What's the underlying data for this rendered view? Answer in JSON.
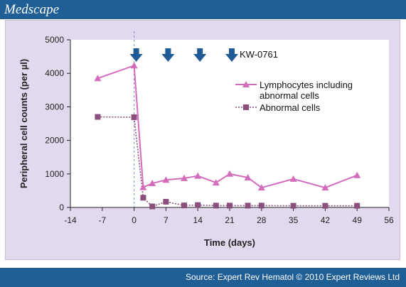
{
  "header": {
    "logo_text": "Medscape"
  },
  "footer": {
    "source": "Source: Expert Rev Hematol © 2010 Expert Reviews Ltd"
  },
  "colors": {
    "header_bg": "#1f5f95",
    "panel_bg": "#e3d9ee",
    "plot_bg": "#ffffff",
    "lymph": "#d46cbc",
    "abnormal": "#8b4f7c",
    "arrow": "#1f5a96",
    "dose_line": "#8ba0cc"
  },
  "chart_data": {
    "type": "line",
    "xlabel": "Time (days)",
    "ylabel": "Peripheral cell counts (per µl)",
    "xlim": [
      -14,
      56
    ],
    "ylim": [
      0,
      5000
    ],
    "xticks": [
      -14,
      -7,
      0,
      7,
      14,
      21,
      28,
      35,
      42,
      49,
      56
    ],
    "yticks": [
      0,
      1000,
      2000,
      3000,
      4000,
      5000
    ],
    "grid": false,
    "legend_position": "top-right",
    "annotation": "KW-0761",
    "dose_days": [
      0,
      7,
      14,
      21
    ],
    "series": [
      {
        "name": "Lymphocytes including abnormal cells",
        "marker": "triangle",
        "line_style": "solid",
        "x": [
          -8,
          0,
          2,
          4,
          7,
          11,
          14,
          18,
          21,
          25,
          28,
          35,
          42,
          49
        ],
        "y": [
          3850,
          4230,
          600,
          720,
          820,
          870,
          940,
          740,
          1000,
          890,
          590,
          850,
          590,
          960
        ]
      },
      {
        "name": "Abnormal cells",
        "marker": "square",
        "line_style": "dotted",
        "x": [
          -8,
          0,
          2,
          4,
          7,
          11,
          14,
          18,
          21,
          25,
          28,
          35,
          42,
          49
        ],
        "y": [
          2700,
          2690,
          290,
          30,
          170,
          60,
          70,
          55,
          55,
          55,
          55,
          50,
          50,
          50
        ]
      }
    ]
  }
}
